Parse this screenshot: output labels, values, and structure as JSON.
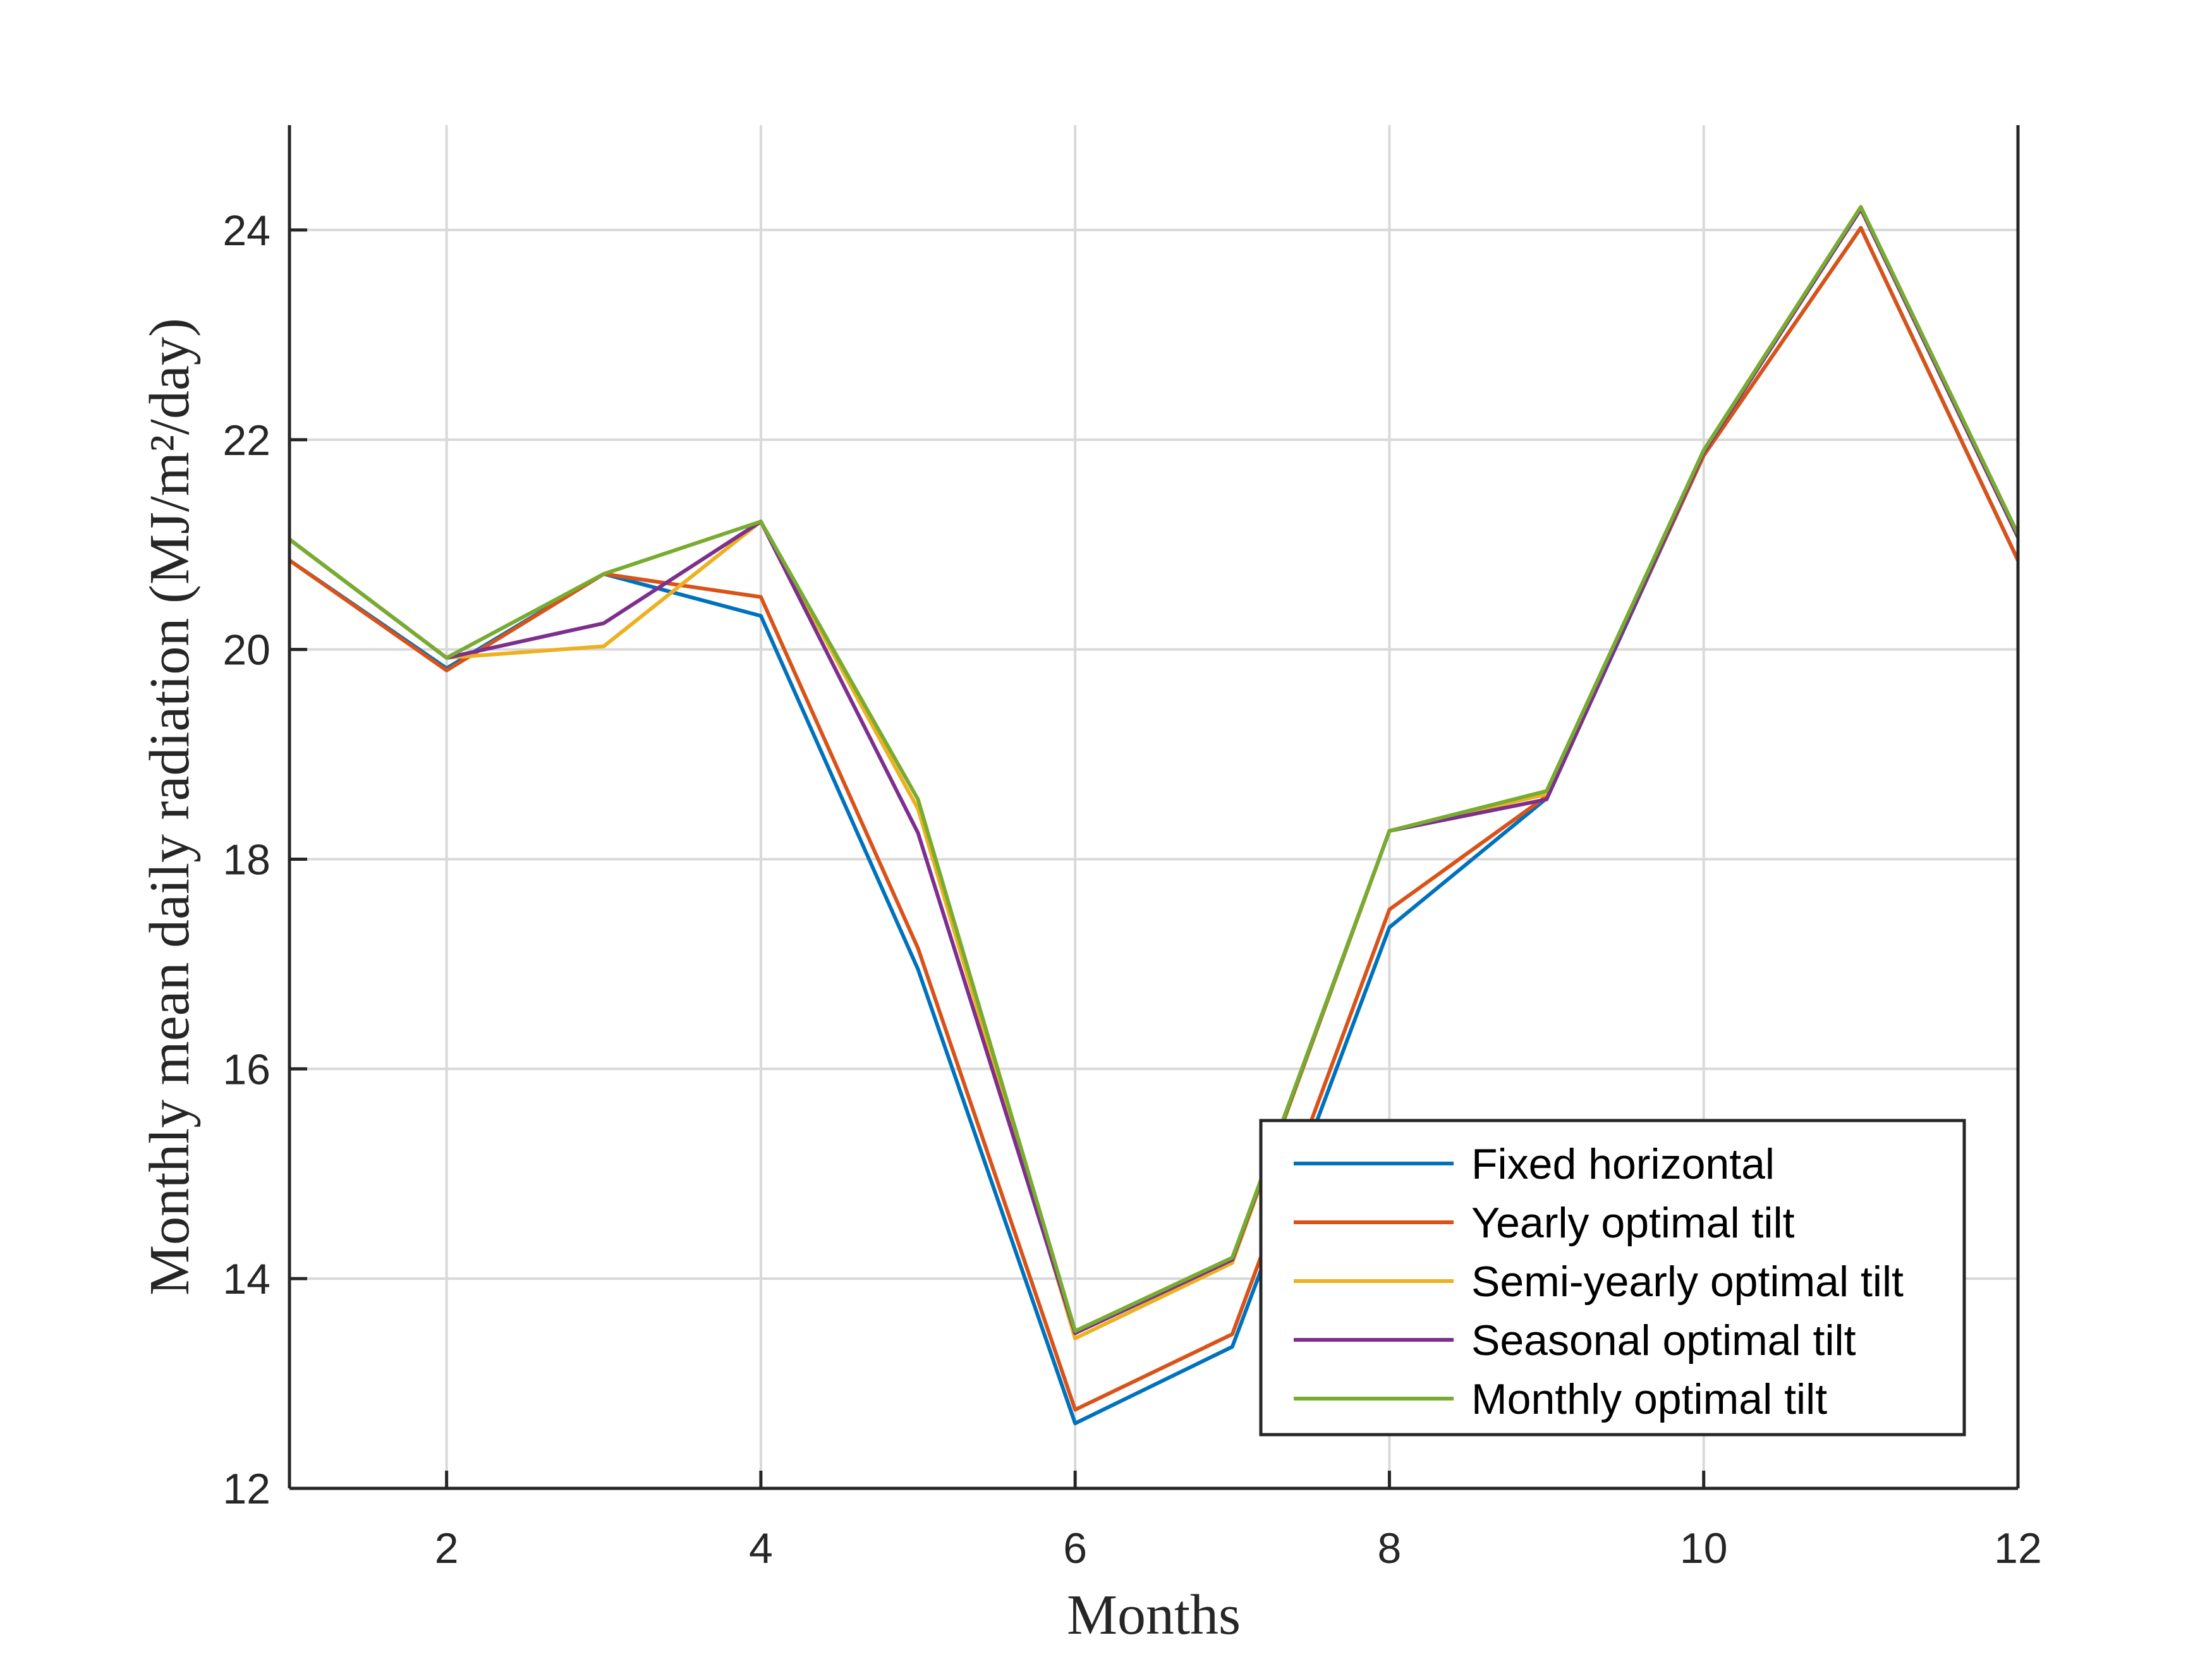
{
  "chart_data": {
    "type": "line",
    "title": "",
    "xlabel": "Months",
    "ylabel": "Monthly mean daily radiation (MJ/m²/day)",
    "xlim": [
      1,
      12
    ],
    "ylim": [
      12,
      25
    ],
    "xticks": [
      2,
      4,
      6,
      8,
      10,
      12
    ],
    "yticks": [
      12,
      14,
      16,
      18,
      20,
      22,
      24
    ],
    "grid": true,
    "legend_position": "bottom-right",
    "x": [
      1,
      2,
      3,
      4,
      5,
      6,
      7,
      8,
      9,
      10,
      11,
      12
    ],
    "series": [
      {
        "name": "Fixed horizontal",
        "color": "#0072BD",
        "values": [
          20.85,
          19.82,
          20.72,
          20.32,
          16.95,
          12.62,
          13.35,
          17.35,
          18.58,
          21.85,
          24.02,
          20.85
        ]
      },
      {
        "name": "Yearly optimal tilt",
        "color": "#D95319",
        "values": [
          20.85,
          19.8,
          20.72,
          20.5,
          17.15,
          12.75,
          13.47,
          17.52,
          18.6,
          21.85,
          24.02,
          20.85
        ]
      },
      {
        "name": "Semi-yearly optimal tilt",
        "color": "#EDB120",
        "values": [
          21.05,
          19.92,
          20.03,
          21.22,
          18.48,
          13.43,
          14.15,
          18.27,
          18.62,
          21.88,
          24.2,
          21.07
        ]
      },
      {
        "name": "Seasonal optimal tilt",
        "color": "#7E2F8E",
        "values": [
          21.05,
          19.92,
          20.25,
          21.22,
          18.25,
          13.48,
          14.18,
          18.27,
          18.57,
          21.88,
          24.2,
          21.07
        ]
      },
      {
        "name": "Monthly optimal tilt",
        "color": "#77AC30",
        "values": [
          21.05,
          19.92,
          20.72,
          21.22,
          18.57,
          13.5,
          14.2,
          18.27,
          18.65,
          21.9,
          24.22,
          21.1
        ]
      }
    ]
  }
}
